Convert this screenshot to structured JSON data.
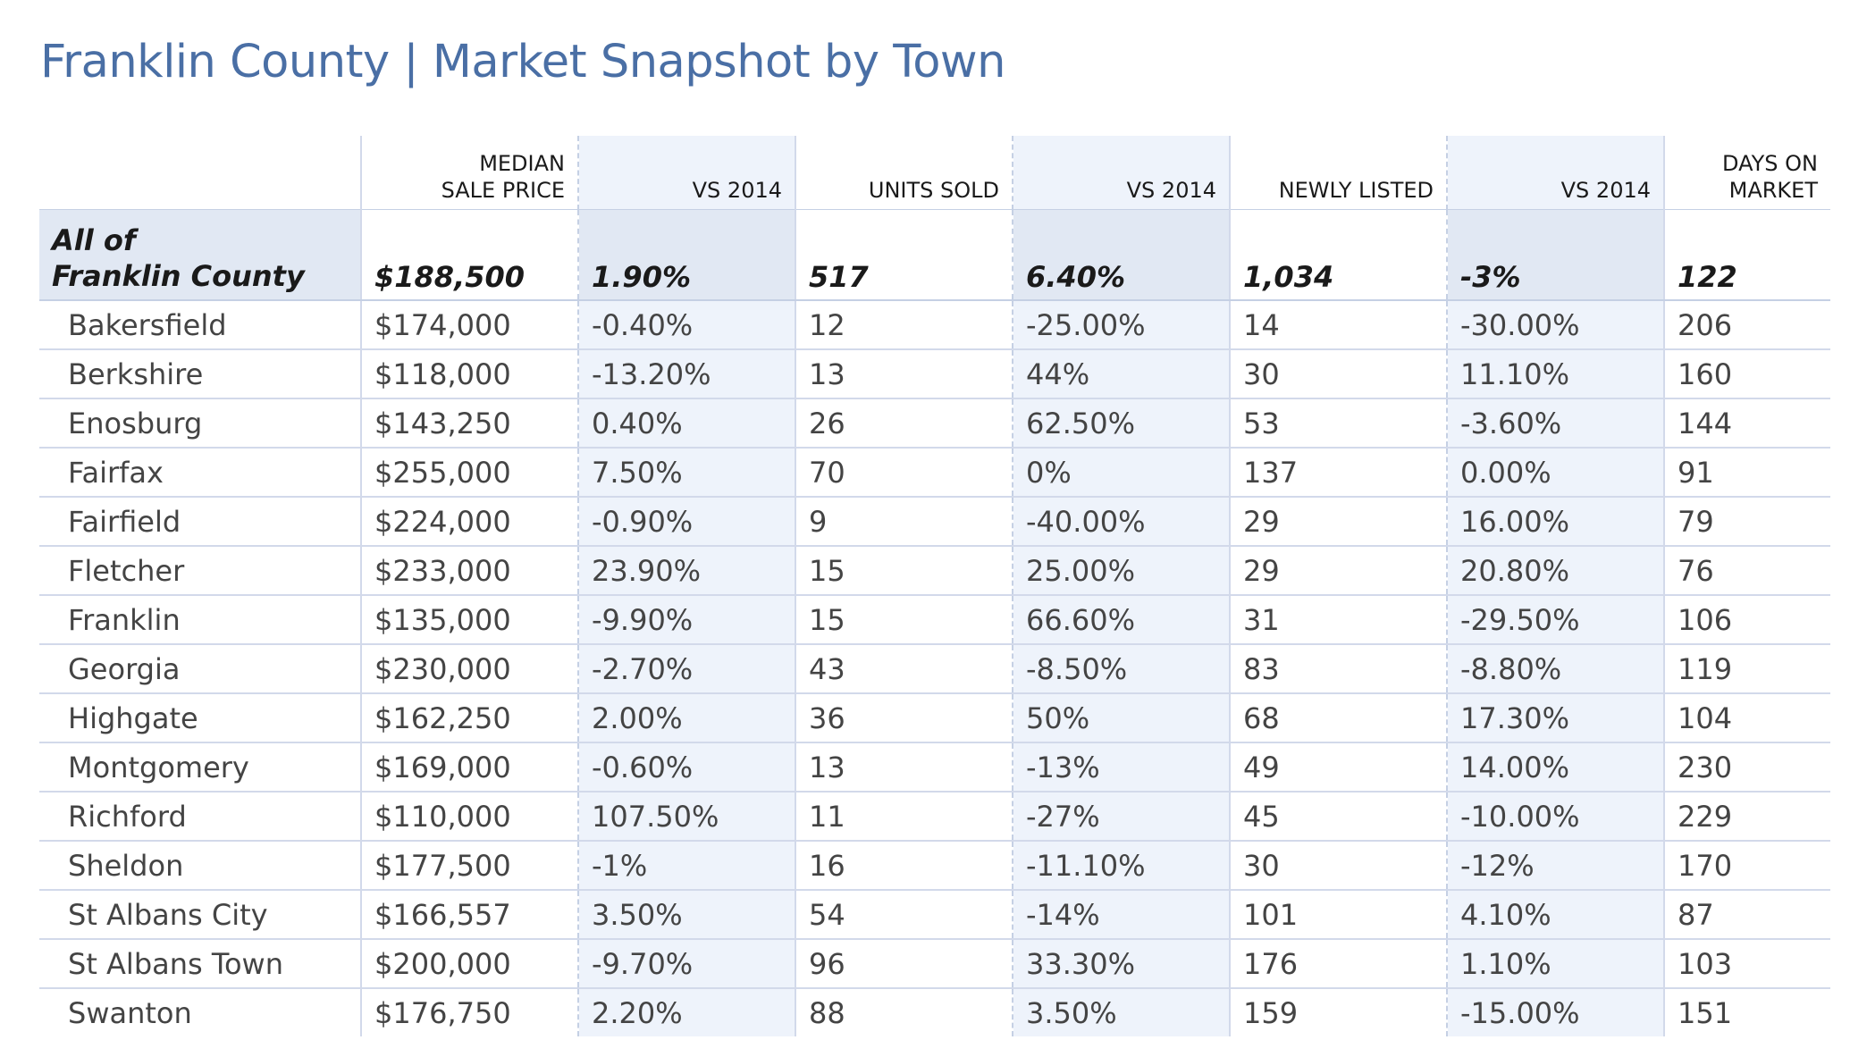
{
  "title": "Franklin County | Market Snapshot by Town",
  "columns": {
    "median_line1": "MEDIAN",
    "median_line2": "SALE PRICE",
    "vs2014_a": "VS 2014",
    "units_sold": "UNITS SOLD",
    "vs2014_b": "VS 2014",
    "newly_listed": "NEWLY LISTED",
    "vs2014_c": "VS 2014",
    "days_line1": "DAYS ON",
    "days_line2": "MARKET"
  },
  "total": {
    "label_line1": "All of",
    "label_line2": "Franklin County",
    "median": "$188,500",
    "median_vs": "1.90%",
    "units": "517",
    "units_vs": "6.40%",
    "listed": "1,034",
    "listed_vs": "-3%",
    "days": "122"
  },
  "rows": [
    {
      "town": "Bakersfield",
      "median": "$174,000",
      "median_vs": "-0.40%",
      "units": "12",
      "units_vs": "-25.00%",
      "listed": "14",
      "listed_vs": "-30.00%",
      "days": "206"
    },
    {
      "town": "Berkshire",
      "median": "$118,000",
      "median_vs": "-13.20%",
      "units": "13",
      "units_vs": "44%",
      "listed": "30",
      "listed_vs": "11.10%",
      "days": "160"
    },
    {
      "town": "Enosburg",
      "median": "$143,250",
      "median_vs": "0.40%",
      "units": "26",
      "units_vs": "62.50%",
      "listed": "53",
      "listed_vs": "-3.60%",
      "days": "144"
    },
    {
      "town": "Fairfax",
      "median": "$255,000",
      "median_vs": "7.50%",
      "units": "70",
      "units_vs": "0%",
      "listed": "137",
      "listed_vs": "0.00%",
      "days": "91"
    },
    {
      "town": "Fairfield",
      "median": "$224,000",
      "median_vs": "-0.90%",
      "units": "9",
      "units_vs": "-40.00%",
      "listed": "29",
      "listed_vs": "16.00%",
      "days": "79"
    },
    {
      "town": "Fletcher",
      "median": "$233,000",
      "median_vs": "23.90%",
      "units": "15",
      "units_vs": "25.00%",
      "listed": "29",
      "listed_vs": "20.80%",
      "days": "76"
    },
    {
      "town": "Franklin",
      "median": "$135,000",
      "median_vs": "-9.90%",
      "units": "15",
      "units_vs": "66.60%",
      "listed": "31",
      "listed_vs": "-29.50%",
      "days": "106"
    },
    {
      "town": "Georgia",
      "median": "$230,000",
      "median_vs": "-2.70%",
      "units": "43",
      "units_vs": "-8.50%",
      "listed": "83",
      "listed_vs": "-8.80%",
      "days": "119"
    },
    {
      "town": "Highgate",
      "median": "$162,250",
      "median_vs": "2.00%",
      "units": "36",
      "units_vs": "50%",
      "listed": "68",
      "listed_vs": "17.30%",
      "days": "104"
    },
    {
      "town": "Montgomery",
      "median": "$169,000",
      "median_vs": "-0.60%",
      "units": "13",
      "units_vs": "-13%",
      "listed": "49",
      "listed_vs": "14.00%",
      "days": "230"
    },
    {
      "town": "Richford",
      "median": "$110,000",
      "median_vs": "107.50%",
      "units": "11",
      "units_vs": "-27%",
      "listed": "45",
      "listed_vs": "-10.00%",
      "days": "229"
    },
    {
      "town": "Sheldon",
      "median": "$177,500",
      "median_vs": "-1%",
      "units": "16",
      "units_vs": "-11.10%",
      "listed": "30",
      "listed_vs": "-12%",
      "days": "170"
    },
    {
      "town": "St Albans City",
      "median": "$166,557",
      "median_vs": "3.50%",
      "units": "54",
      "units_vs": "-14%",
      "listed": "101",
      "listed_vs": "4.10%",
      "days": "87"
    },
    {
      "town": "St Albans Town",
      "median": "$200,000",
      "median_vs": "-9.70%",
      "units": "96",
      "units_vs": "33.30%",
      "listed": "176",
      "listed_vs": "1.10%",
      "days": "103"
    },
    {
      "town": "Swanton",
      "median": "$176,750",
      "median_vs": "2.20%",
      "units": "88",
      "units_vs": "3.50%",
      "listed": "159",
      "listed_vs": "-15.00%",
      "days": "151"
    }
  ]
}
